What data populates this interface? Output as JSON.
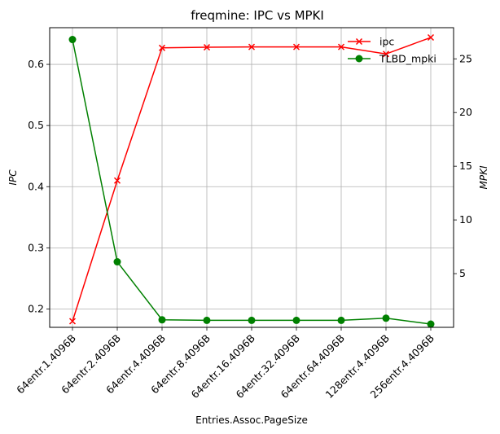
{
  "chart_data": {
    "type": "line",
    "title": "freqmine: IPC vs MPKI",
    "xlabel": "Entries.Assoc.PageSize",
    "ylabel_left": "IPC",
    "ylabel_right": "MPKI",
    "categories": [
      "64entr.1.4096B",
      "64entr.2.4096B",
      "64entr.4.4096B",
      "64entr.8.4096B",
      "64entr.16.4096B",
      "64entr.32.4096B",
      "64entr.64.4096B",
      "128entr.4.4096B",
      "256entr.4.4096B"
    ],
    "series": [
      {
        "name": "ipc",
        "axis": "left",
        "color": "#ff0000",
        "marker": "x",
        "values": [
          0.18,
          0.41,
          0.627,
          0.628,
          0.6285,
          0.6285,
          0.6285,
          0.617,
          0.644
        ]
      },
      {
        "name": "TLBD_mpki",
        "axis": "right",
        "color": "#008000",
        "marker": "o",
        "values": [
          26.8,
          6.1,
          0.7,
          0.65,
          0.65,
          0.65,
          0.65,
          0.85,
          0.3
        ]
      }
    ],
    "ylim_left": [
      0.17,
      0.66
    ],
    "ylim_right": [
      0.0,
      27.9
    ],
    "yticks_left": [
      0.2,
      0.3,
      0.4,
      0.5,
      0.6
    ],
    "yticks_right": [
      5,
      10,
      15,
      20,
      25
    ],
    "grid": true,
    "legend_placement": "top-right"
  }
}
